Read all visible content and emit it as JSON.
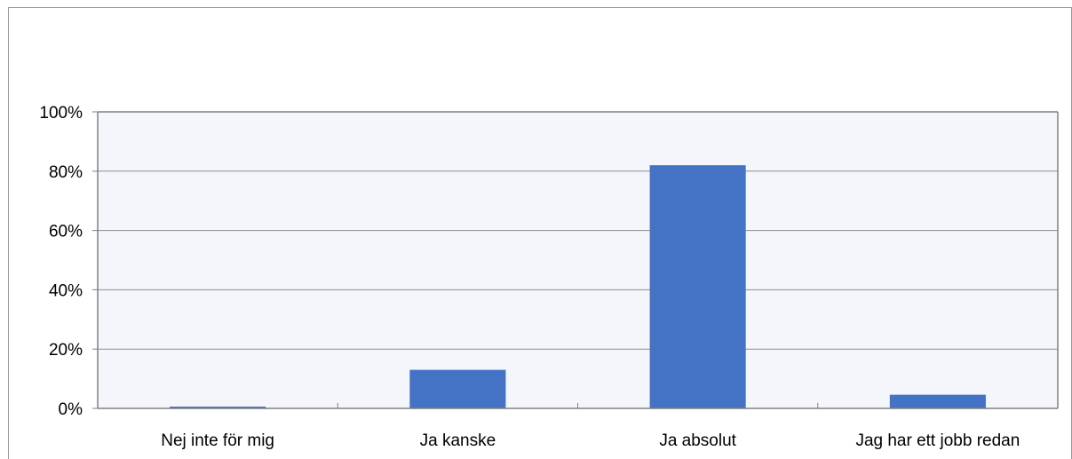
{
  "chart_data": {
    "type": "bar",
    "categories": [
      "Nej inte för mig",
      "Ja kanske",
      "Ja absolut",
      "Jag har ett jobb redan"
    ],
    "values": [
      0.6,
      13,
      82,
      4.6
    ],
    "ylim": [
      0,
      100
    ],
    "yticks": [
      0,
      20,
      40,
      60,
      80,
      100
    ],
    "ytick_labels": [
      "0%",
      "20%",
      "40%",
      "60%",
      "80%",
      "100%"
    ],
    "grid": true,
    "legend": "none",
    "colors": {
      "bar": "#4472c4",
      "plot_bg": "#f4f6fc",
      "grid": "#8c8c8c",
      "axis": "#808080"
    }
  }
}
